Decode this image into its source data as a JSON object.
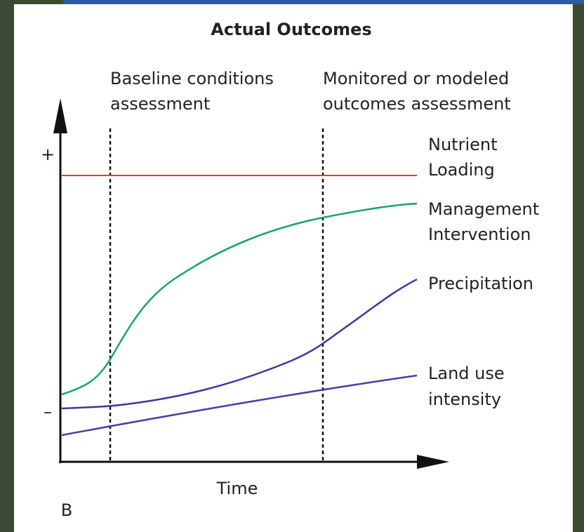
{
  "title": "Actual Outcomes",
  "phases": [
    {
      "lines": [
        "Baseline conditions",
        "assessment"
      ]
    },
    {
      "lines": [
        "Monitored or modeled",
        "outcomes assessment"
      ]
    }
  ],
  "curves": [
    {
      "lines": [
        "Nutrient",
        "Loading"
      ]
    },
    {
      "lines": [
        "Management",
        "Intervention"
      ]
    },
    {
      "lines": [
        "Precipitation"
      ]
    },
    {
      "lines": [
        "Land use",
        "intensity"
      ]
    }
  ],
  "axis": {
    "high": "+",
    "low": "–",
    "x_label": "Time"
  },
  "panel_label": "B"
}
